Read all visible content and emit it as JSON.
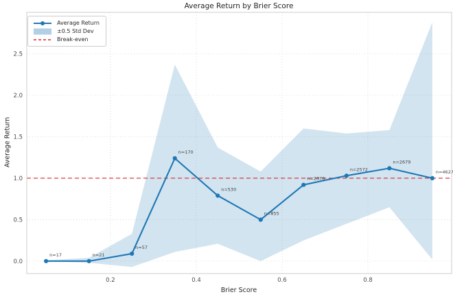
{
  "chart_data": {
    "type": "line",
    "title": "Average Return by Brier Score",
    "xlabel": "Brier Score",
    "ylabel": "Average Return",
    "x": [
      0.05,
      0.15,
      0.25,
      0.35,
      0.45,
      0.55,
      0.65,
      0.75,
      0.85,
      0.95
    ],
    "series": [
      {
        "name": "Average Return",
        "values": [
          0.0,
          0.0,
          0.09,
          1.24,
          0.79,
          0.5,
          0.92,
          1.03,
          1.12,
          1.0
        ]
      }
    ],
    "band": {
      "name": "±0.5 Std Dev",
      "lower": [
        0.0,
        -0.02,
        -0.07,
        0.11,
        0.21,
        0.0,
        0.25,
        0.45,
        0.65,
        0.02
      ],
      "upper": [
        0.01,
        0.04,
        0.33,
        2.37,
        1.37,
        1.08,
        1.6,
        1.54,
        1.58,
        2.88
      ]
    },
    "breakeven": {
      "name": "Break-even",
      "y": 1.0
    },
    "annotations": [
      "n=17",
      "n=21",
      "n=57",
      "n=170",
      "n=530",
      "n=855",
      "n=2070",
      "n=2572",
      "n=2679",
      "n=4627"
    ],
    "x_ticks": [
      0.2,
      0.4,
      0.6,
      0.8
    ],
    "y_ticks": [
      0.0,
      0.5,
      1.0,
      1.5,
      2.0,
      2.5
    ],
    "xlim": [
      0.005,
      0.995
    ],
    "ylim": [
      -0.15,
      3.0
    ],
    "grid": true,
    "legend_position": "upper-left",
    "colors": {
      "line": "#1f77b4",
      "band": "#1f77b4",
      "band_opacity": 0.2,
      "breakeven": "#d62728",
      "grid": "#d9d9d9",
      "spine": "#cccccc",
      "tick_text": "#4d4d4d",
      "annotation_text": "#404040"
    }
  }
}
